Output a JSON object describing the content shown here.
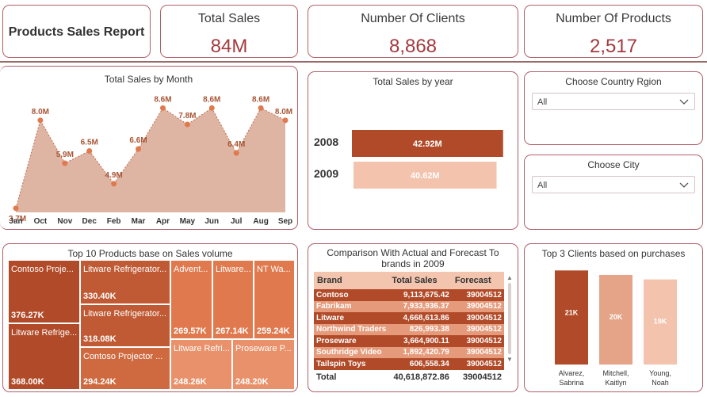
{
  "header": {
    "report_title": "Products Sales Report",
    "kpis": [
      {
        "label": "Total Sales",
        "value": "84M"
      },
      {
        "label": "Number Of Clients",
        "value": "8,868"
      },
      {
        "label": "Number Of Products",
        "value": "2,517"
      }
    ]
  },
  "colors": {
    "dark": "#b14a28",
    "mid": "#e07a4e",
    "light": "#f4c3ad",
    "border": "#b0606a",
    "kpi": "#a33a3f"
  },
  "filters": {
    "country": {
      "title": "Choose Country Rgion",
      "value": "All"
    },
    "city": {
      "title": "Choose City",
      "value": "All"
    }
  },
  "chart_data": [
    {
      "type": "area",
      "title": "Total Sales by Month",
      "categories": [
        "Jan",
        "Feb",
        "Mar",
        "Apr",
        "May",
        "Jun",
        "Jul",
        "Aug",
        "Sep",
        "Oct",
        "Nov",
        "Dec"
      ],
      "axis_categories": [
        "Jan",
        "Oct",
        "Nov",
        "Dec",
        "Feb",
        "Mar",
        "Apr",
        "May",
        "Jun",
        "Jul",
        "Aug",
        "Sep"
      ],
      "points": [
        {
          "x": "Jan",
          "y": 3.7,
          "label": "3.7M"
        },
        {
          "x": "",
          "y": 8.0,
          "label": "8.0M"
        },
        {
          "x": "",
          "y": 5.9,
          "label": "5.9M"
        },
        {
          "x": "",
          "y": 6.5,
          "label": "6.5M"
        },
        {
          "x": "",
          "y": 4.9,
          "label": "4.9M"
        },
        {
          "x": "",
          "y": 6.6,
          "label": "6.6M"
        },
        {
          "x": "",
          "y": 8.6,
          "label": "8.6M"
        },
        {
          "x": "",
          "y": 7.8,
          "label": "7.8M"
        },
        {
          "x": "",
          "y": 8.6,
          "label": "8.6M"
        },
        {
          "x": "",
          "y": 6.4,
          "label": "6.4M"
        },
        {
          "x": "",
          "y": 8.6,
          "label": "8.6M"
        },
        {
          "x": "",
          "y": 8.0,
          "label": "8.0M"
        }
      ],
      "ylim": [
        3.5,
        9.0
      ]
    },
    {
      "type": "bar",
      "title": "Total Sales by year",
      "categories": [
        "2008",
        "2009"
      ],
      "values": [
        42.92,
        40.62
      ],
      "labels": [
        "42.92M",
        "40.62M"
      ],
      "xlim": [
        0,
        45
      ]
    },
    {
      "type": "bar",
      "title": "Top 3 Clients based on purchases",
      "categories": [
        "Alvarez, Sabrina",
        "Mitchell, Kaitlyn",
        "Young, Noah"
      ],
      "values": [
        21,
        20,
        19
      ],
      "labels": [
        "21K",
        "20K",
        "19K"
      ],
      "ylim": [
        0,
        23
      ]
    }
  ],
  "treemap": {
    "title": "Top 10 Products base on Sales volume",
    "items": [
      {
        "name": "Contoso Proje...",
        "value": "376.27K"
      },
      {
        "name": "Litware Refrige...",
        "value": "368.00K"
      },
      {
        "name": "Litware Refrigerator...",
        "value": "330.40K"
      },
      {
        "name": "Litware Refrigerator...",
        "value": "318.08K"
      },
      {
        "name": "Contoso Projector ...",
        "value": "294.24K"
      },
      {
        "name": "Advent...",
        "value": "269.57K"
      },
      {
        "name": "Litware...",
        "value": "267.14K"
      },
      {
        "name": "NT Wa...",
        "value": "259.24K"
      },
      {
        "name": "Litware Refri...",
        "value": "248.26K"
      },
      {
        "name": "Proseware P...",
        "value": "248.20K"
      }
    ]
  },
  "forecast_table": {
    "title_line1": "Comparison With Actual and Forecast To",
    "title_line2": "brands in 2009",
    "columns": [
      "Brand",
      "Total Sales",
      "Forecast"
    ],
    "rows": [
      {
        "brand": "Contoso",
        "sales": "9,113,675.42",
        "forecast": "39004512"
      },
      {
        "brand": "Fabrikam",
        "sales": "7,933,936.37",
        "forecast": "39004512"
      },
      {
        "brand": "Litware",
        "sales": "4,668,613.86",
        "forecast": "39004512"
      },
      {
        "brand": "Northwind Traders",
        "sales": "826,993.38",
        "forecast": "39004512"
      },
      {
        "brand": "Proseware",
        "sales": "3,664,900.11",
        "forecast": "39004512"
      },
      {
        "brand": "Southridge Video",
        "sales": "1,892,420.79",
        "forecast": "39004512"
      },
      {
        "brand": "Tailspin Toys",
        "sales": "606,558.34",
        "forecast": "39004512"
      }
    ],
    "total": {
      "label": "Total",
      "sales": "40,618,872.86",
      "forecast": "39004512"
    }
  }
}
